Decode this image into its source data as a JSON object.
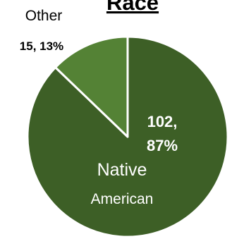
{
  "chart_data": {
    "type": "pie",
    "title": "Race",
    "slices": [
      {
        "label_lines": [
          "Native",
          "American"
        ],
        "value": 102,
        "percent": "87%",
        "data_label_lines": [
          "102,",
          "87%"
        ],
        "color": "#3d5f26"
      },
      {
        "label_lines": [
          "Other"
        ],
        "value": 15,
        "percent": "13%",
        "data_label_lines": [
          "15, 13%"
        ],
        "color": "#548235"
      }
    ],
    "slice_border_color": "#ffffff",
    "title_color": "#000000",
    "inside_label_color": "#ffffff",
    "outside_label_color": "#000000"
  }
}
